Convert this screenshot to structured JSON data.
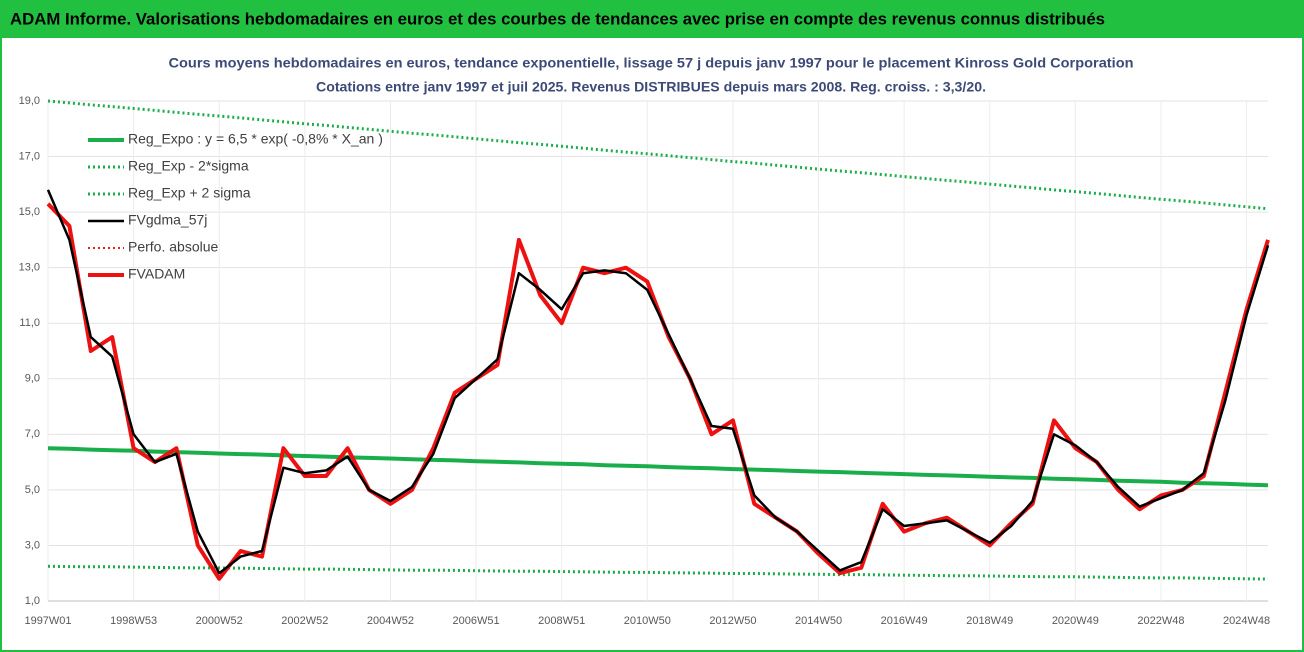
{
  "chart_data": {
    "type": "line",
    "header": "ADAM Informe. Valorisations hebdomadaires en euros et des courbes de tendances avec prise en compte des revenus connus distribués",
    "title": "Cours moyens hebdomadaires en euros, tendance exponentielle, lissage 57 j depuis janv 1997 pour le placement Kinross Gold Corporation",
    "subtitle": "Cotations entre janv 1997 et juil 2025. Revenus DISTRIBUES depuis mars 2008. Reg. croiss. : 3,3/20.",
    "categories": [
      "1997W01",
      null,
      null,
      null,
      "1998W53",
      null,
      null,
      null,
      "2000W52",
      null,
      null,
      null,
      "2002W52",
      null,
      null,
      null,
      "2004W52",
      null,
      null,
      null,
      "2006W51",
      null,
      null,
      null,
      "2008W51",
      null,
      null,
      null,
      "2010W50",
      null,
      null,
      null,
      "2012W50",
      null,
      null,
      null,
      "2014W50",
      null,
      null,
      null,
      "2016W49",
      null,
      null,
      null,
      "2018W49",
      null,
      null,
      null,
      "2020W49",
      null,
      null,
      null,
      "2022W48",
      null,
      null,
      null,
      "2024W48",
      null
    ],
    "ylim": [
      1,
      19
    ],
    "yticks": [
      {
        "value": 1,
        "label": "1,0"
      },
      {
        "value": 3,
        "label": "3,0"
      },
      {
        "value": 5,
        "label": "5,0"
      },
      {
        "value": 7,
        "label": "7,0"
      },
      {
        "value": 9,
        "label": "9,0"
      },
      {
        "value": 11,
        "label": "11,0"
      },
      {
        "value": 13,
        "label": "13,0"
      },
      {
        "value": 15,
        "label": "15,0"
      },
      {
        "value": 17,
        "label": "17,0"
      },
      {
        "value": 19,
        "label": "19,0"
      }
    ],
    "grid": true,
    "legend": "upper left",
    "series": [
      {
        "name": "Reg_Expo : y = 6,5 * exp( -0,8% * X_an )",
        "color": "#1aae4a",
        "style": "solid",
        "width": 4,
        "values": [
          6.5,
          6.48,
          6.45,
          6.43,
          6.41,
          6.38,
          6.36,
          6.34,
          6.31,
          6.29,
          6.27,
          6.24,
          6.22,
          6.2,
          6.17,
          6.15,
          6.13,
          6.1,
          6.08,
          6.06,
          6.03,
          6.01,
          5.99,
          5.96,
          5.94,
          5.92,
          5.89,
          5.87,
          5.85,
          5.82,
          5.8,
          5.78,
          5.75,
          5.73,
          5.71,
          5.68,
          5.66,
          5.64,
          5.61,
          5.59,
          5.57,
          5.54,
          5.52,
          5.5,
          5.47,
          5.45,
          5.43,
          5.4,
          5.38,
          5.36,
          5.33,
          5.31,
          5.29,
          5.26,
          5.24,
          5.22,
          5.19,
          5.17
        ]
      },
      {
        "name": "Reg_Exp - 2*sigma",
        "color": "#1aae4a",
        "style": "dotted",
        "width": 3,
        "values": [
          2.25,
          2.24,
          2.23,
          2.23,
          2.22,
          2.21,
          2.2,
          2.19,
          2.19,
          2.18,
          2.17,
          2.16,
          2.15,
          2.15,
          2.14,
          2.13,
          2.12,
          2.11,
          2.11,
          2.1,
          2.09,
          2.08,
          2.07,
          2.07,
          2.06,
          2.05,
          2.04,
          2.03,
          2.03,
          2.02,
          2.01,
          2.0,
          1.99,
          1.99,
          1.98,
          1.97,
          1.96,
          1.95,
          1.95,
          1.94,
          1.93,
          1.92,
          1.91,
          1.91,
          1.9,
          1.89,
          1.88,
          1.87,
          1.87,
          1.86,
          1.85,
          1.84,
          1.83,
          1.83,
          1.82,
          1.81,
          1.8,
          1.79
        ]
      },
      {
        "name": "Reg_Exp + 2 sigma",
        "color": "#1aae4a",
        "style": "dotted",
        "width": 3,
        "values": [
          19.0,
          18.93,
          18.86,
          18.8,
          18.73,
          18.66,
          18.59,
          18.52,
          18.46,
          18.39,
          18.32,
          18.25,
          18.18,
          18.12,
          18.05,
          17.98,
          17.91,
          17.84,
          17.78,
          17.71,
          17.64,
          17.57,
          17.5,
          17.44,
          17.37,
          17.3,
          17.23,
          17.16,
          17.1,
          17.03,
          16.96,
          16.89,
          16.82,
          16.76,
          16.69,
          16.62,
          16.55,
          16.48,
          16.42,
          16.35,
          16.28,
          16.21,
          16.14,
          16.08,
          16.01,
          15.94,
          15.87,
          15.8,
          15.74,
          15.67,
          15.6,
          15.53,
          15.46,
          15.4,
          15.33,
          15.26,
          15.19,
          15.12
        ]
      },
      {
        "name": "FVgdma_57j",
        "color": "#000000",
        "style": "solid",
        "width": 2.5,
        "values": [
          15.8,
          14.0,
          10.5,
          9.8,
          7.0,
          6.0,
          6.3,
          3.5,
          2.0,
          2.6,
          2.8,
          5.8,
          5.6,
          5.7,
          6.2,
          5.0,
          4.6,
          5.1,
          6.3,
          8.3,
          9.0,
          9.7,
          12.8,
          12.2,
          11.5,
          12.8,
          12.9,
          12.8,
          12.2,
          10.6,
          9.0,
          7.3,
          7.2,
          4.8,
          4.0,
          3.5,
          2.8,
          2.1,
          2.4,
          4.3,
          3.7,
          3.8,
          3.9,
          3.5,
          3.1,
          3.7,
          4.6,
          7.0,
          6.6,
          6.0,
          5.1,
          4.4,
          4.7,
          5.0,
          5.6,
          8.2,
          11.3,
          13.8
        ]
      },
      {
        "name": "Perfo. absolue",
        "color": "#e02020",
        "style": "dotted",
        "width": 2,
        "values": [
          null,
          null,
          null,
          null,
          null,
          null,
          null,
          null,
          null,
          null,
          null,
          null,
          null,
          null,
          null,
          null,
          null,
          null,
          null,
          null,
          null,
          null,
          null,
          null,
          null,
          null,
          null,
          null,
          null,
          null,
          null,
          null,
          null,
          null,
          null,
          null,
          null,
          null,
          null,
          null,
          null,
          null,
          null,
          null,
          null,
          null,
          null,
          null,
          null,
          null,
          null,
          null,
          null,
          null,
          null,
          null,
          null,
          null
        ]
      },
      {
        "name": "FVADAM",
        "color": "#ee1111",
        "style": "solid",
        "width": 4,
        "values": [
          15.3,
          14.5,
          10.0,
          10.5,
          6.5,
          6.0,
          6.5,
          3.0,
          1.8,
          2.8,
          2.6,
          6.5,
          5.5,
          5.5,
          6.5,
          5.0,
          4.5,
          5.0,
          6.5,
          8.5,
          9.0,
          9.5,
          14.0,
          12.0,
          11.0,
          13.0,
          12.8,
          13.0,
          12.5,
          10.5,
          9.0,
          7.0,
          7.5,
          4.5,
          4.0,
          3.5,
          2.7,
          2.0,
          2.2,
          4.5,
          3.5,
          3.8,
          4.0,
          3.5,
          3.0,
          3.8,
          4.5,
          7.5,
          6.5,
          6.0,
          5.0,
          4.3,
          4.8,
          5.0,
          5.5,
          8.5,
          11.5,
          14.0
        ]
      }
    ],
    "draw_order": [
      0,
      1,
      2,
      5,
      3,
      4
    ]
  }
}
